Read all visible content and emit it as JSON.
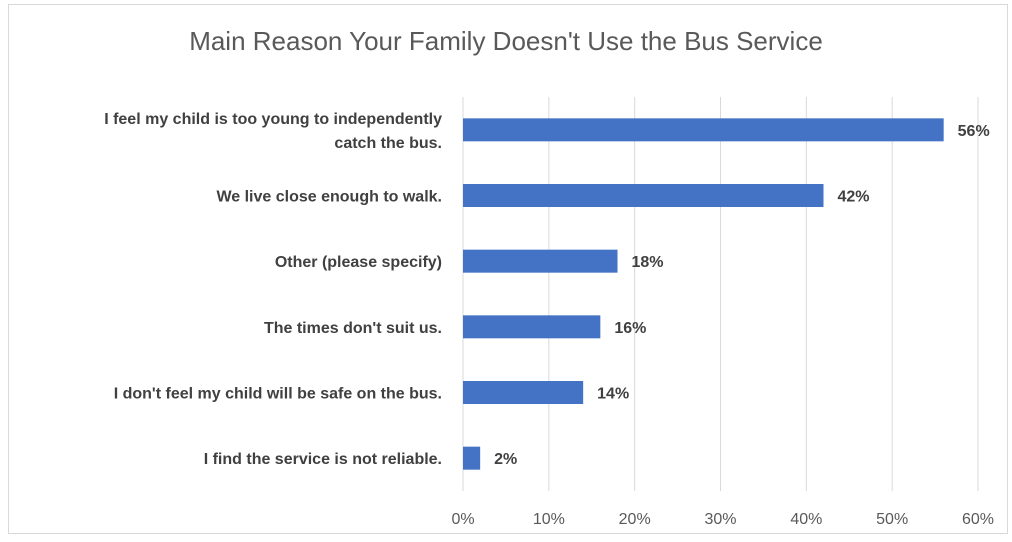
{
  "chart_data": {
    "type": "bar",
    "orientation": "horizontal",
    "title": "Main Reason Your Family Doesn't Use the Bus Service",
    "categories": [
      [
        "I feel my child is too young to independently",
        "catch the bus."
      ],
      [
        "We live close enough to walk."
      ],
      [
        "Other (please specify)"
      ],
      [
        "The times don't suit us."
      ],
      [
        "I don't feel my child will be safe on the bus."
      ],
      [
        "I find the service is not reliable."
      ]
    ],
    "values": [
      56,
      42,
      18,
      16,
      14,
      2
    ],
    "value_labels": [
      "56%",
      "42%",
      "18%",
      "16%",
      "14%",
      "2%"
    ],
    "xlim": [
      0,
      60
    ],
    "x_ticks": [
      "0%",
      "10%",
      "20%",
      "30%",
      "40%",
      "50%",
      "60%"
    ],
    "grid": true,
    "bar_color": "#4472c4"
  }
}
